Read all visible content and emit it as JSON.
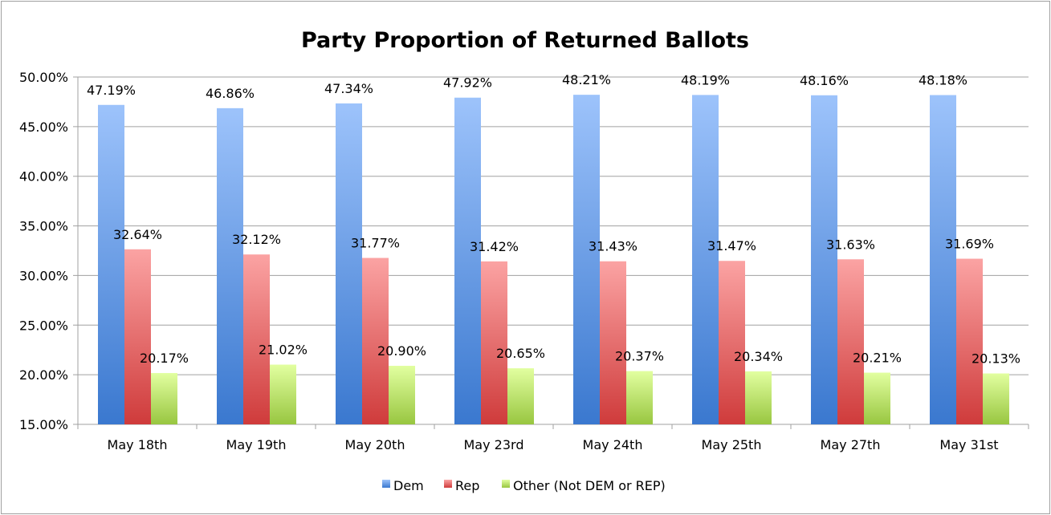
{
  "chart_data": {
    "type": "bar",
    "title": "Party Proportion of Returned Ballots",
    "xlabel": "",
    "ylabel": "",
    "ylim": [
      15,
      50
    ],
    "yticks": [
      "15.00%",
      "20.00%",
      "25.00%",
      "30.00%",
      "35.00%",
      "40.00%",
      "45.00%",
      "50.00%"
    ],
    "grid": true,
    "legend_position": "bottom",
    "categories": [
      "May 18th",
      "May 19th",
      "May 20th",
      "May 23rd",
      "May 24th",
      "May 25th",
      "May 27th",
      "May 31st"
    ],
    "series": [
      {
        "name": "Dem",
        "color": "#4a86d8",
        "values": [
          47.19,
          46.86,
          47.34,
          47.92,
          48.21,
          48.19,
          48.16,
          48.18
        ],
        "labels": [
          "47.19%",
          "46.86%",
          "47.34%",
          "47.92%",
          "48.21%",
          "48.19%",
          "48.16%",
          "48.18%"
        ]
      },
      {
        "name": "Rep",
        "color": "#d94a4a",
        "values": [
          32.64,
          32.12,
          31.77,
          31.42,
          31.43,
          31.47,
          31.63,
          31.69
        ],
        "labels": [
          "32.64%",
          "32.12%",
          "31.77%",
          "31.42%",
          "31.43%",
          "31.47%",
          "31.63%",
          "31.69%"
        ]
      },
      {
        "name": "Other (Not DEM or REP)",
        "color": "#a6d04a",
        "values": [
          20.17,
          21.02,
          20.9,
          20.65,
          20.37,
          20.34,
          20.21,
          20.13
        ],
        "labels": [
          "20.17%",
          "21.02%",
          "20.90%",
          "20.65%",
          "20.37%",
          "20.34%",
          "20.21%",
          "20.13%"
        ]
      }
    ]
  }
}
